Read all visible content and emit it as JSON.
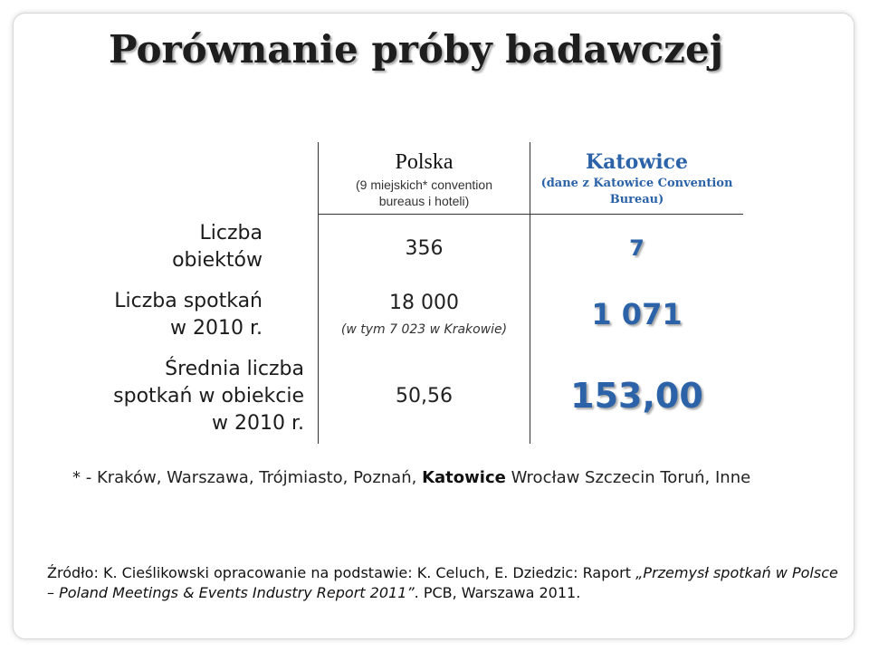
{
  "title": "Porównanie próby badawczej",
  "row_labels": [
    [
      "Liczba",
      "obiektów"
    ],
    [
      "Liczba spotkań",
      "w 2010 r."
    ],
    [
      "Średnia liczba",
      "spotkań w obiekcie",
      "w 2010 r."
    ]
  ],
  "columns": {
    "polska": {
      "heading": "Polska",
      "subheading_line1": "(9 miejskich* convention",
      "subheading_line2": "bureaus i hoteli)",
      "values": [
        "356",
        "18 000",
        "50,56"
      ],
      "note": "(w tym 7 023 w Krakowie)"
    },
    "katowice": {
      "heading": "Katowice",
      "subheading_line1": "(dane z Katowice Convention",
      "subheading_line2": "Bureau)",
      "values": [
        "7",
        "1 071",
        "153,00"
      ]
    }
  },
  "footnote": {
    "prefix": "* - Kraków, Warszawa, Trójmiasto, Poznań,",
    "bold": "Katowice",
    "suffix": "Wrocław Szczecin Toruń, Inne"
  },
  "source": {
    "part1": "Źródło: K. Cieślikowski opracowanie na podstawie: K. Celuch, E. Dziedzic: Raport",
    "italic1": "„Przemysł spotkań w Polsce",
    "italic2": "– Poland Meetings & Events Industry Report 2011”",
    "part2": ". PCB, Warszawa 2011."
  },
  "colors": {
    "accent": "#2b62a8",
    "text": "#1a1a1a"
  }
}
